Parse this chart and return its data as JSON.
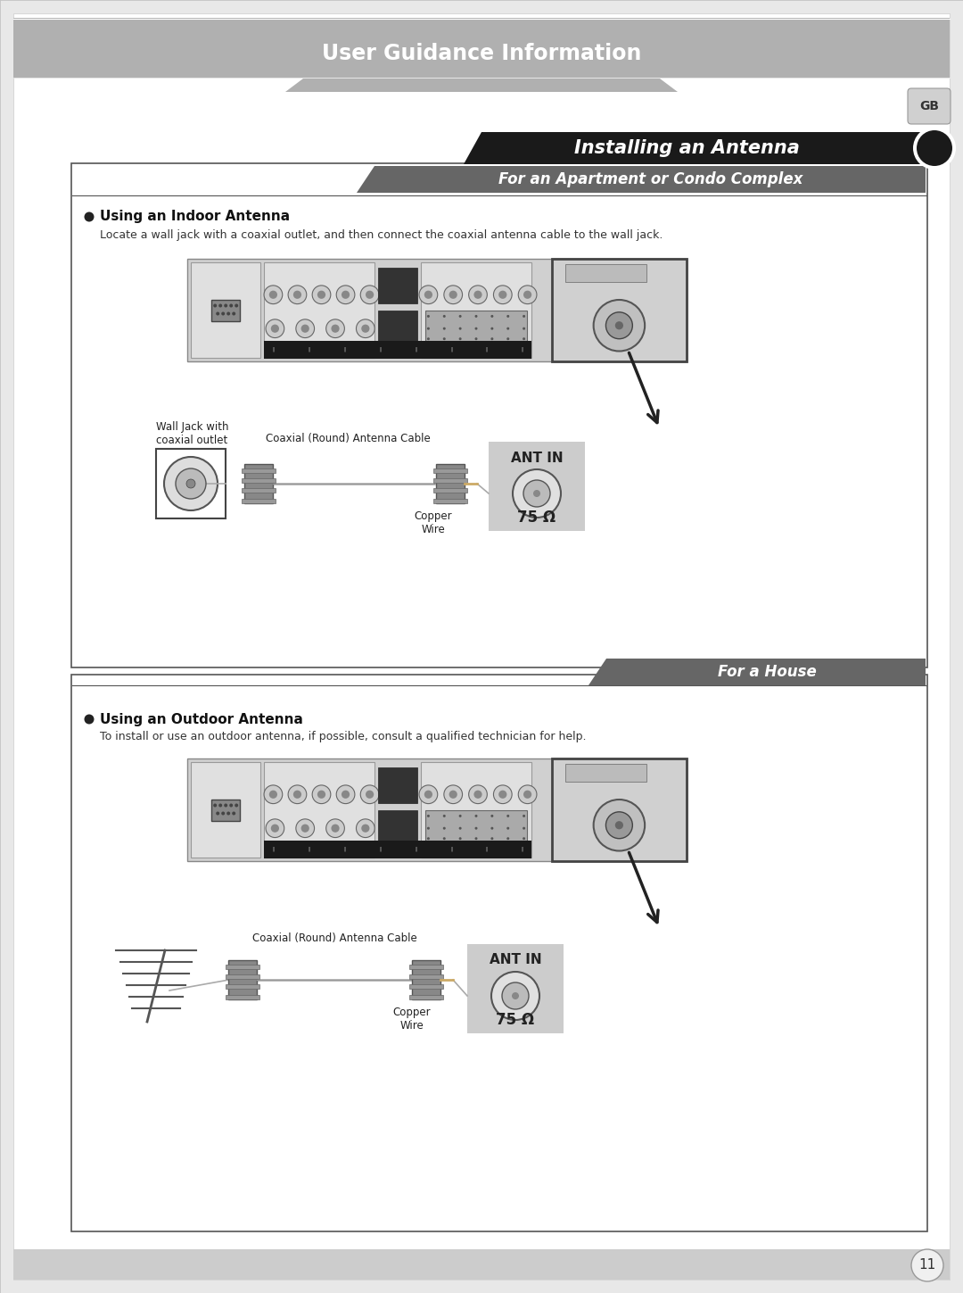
{
  "page_bg": "#e8e8e8",
  "content_bg": "#ffffff",
  "header_bg": "#aaaaaa",
  "header_text": "User Guidance Information",
  "header_text_color": "#ffffff",
  "title_bg": "#1a1a1a",
  "title_text": "Installing an Antenna",
  "title_text_color": "#ffffff",
  "section1_bg": "#666666",
  "section1_text": "For an Apartment or Condo Complex",
  "section1_text_color": "#ffffff",
  "section2_bg": "#666666",
  "section2_text": "For a House",
  "section2_text_color": "#ffffff",
  "gb_badge_bg": "#cccccc",
  "gb_text": "GB",
  "bullet1_title": "Using an Indoor Antenna",
  "bullet1_desc": "Locate a wall jack with a coaxial outlet, and then connect the coaxial antenna cable to the wall jack.",
  "bullet2_title": "Using an Outdoor Antenna",
  "bullet2_desc": "To install or use an outdoor antenna, if possible, consult a qualified technician for help.",
  "ant_in_label": "ANT IN",
  "ohm_label": "75 Ω",
  "coax_label": "Coaxial (Round) Antenna Cable",
  "copper_label": "Copper\nWire",
  "wall_jack_label": "Wall Jack with\ncoaxial outlet",
  "page_number": "11",
  "device_bg": "#cccccc",
  "ant_box_bg": "#cccccc"
}
